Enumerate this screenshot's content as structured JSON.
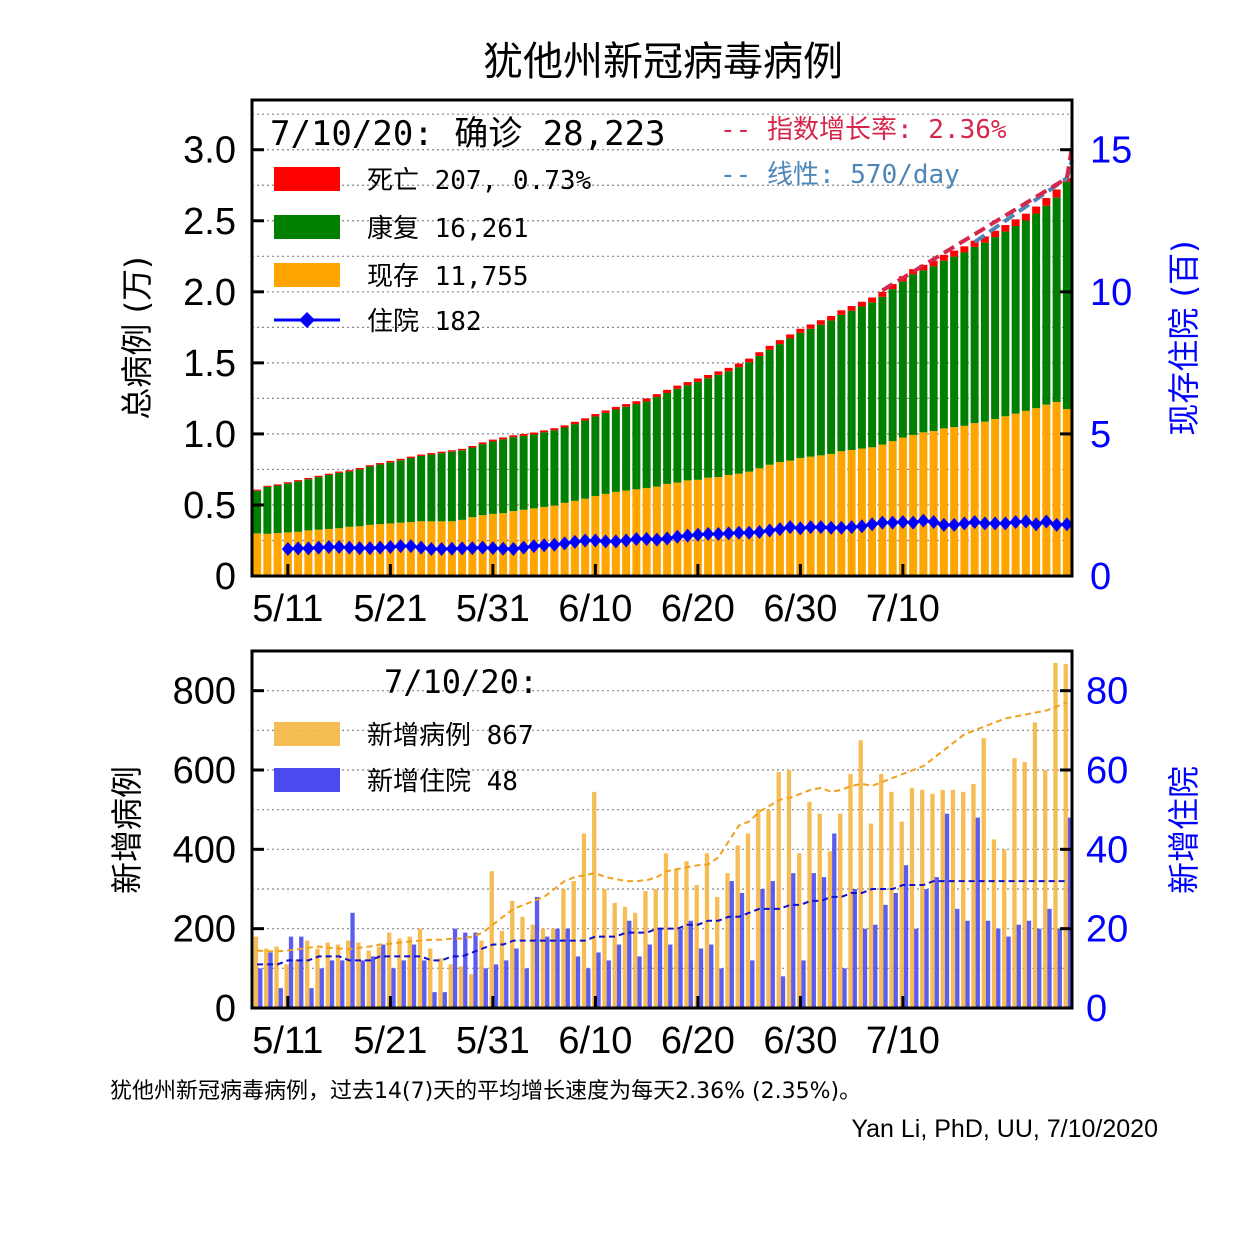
{
  "title": "犹他州新冠病毒病例",
  "footnote": "犹他州新冠病毒病例，过去14(7)天的平均增长速度为每天2.36% (2.35%)。",
  "credit": "Yan Li, PhD, UU, 7/10/2020",
  "colors": {
    "death": "#ff0000",
    "recovered": "#008000",
    "active": "#ffa500",
    "hosp_line": "#0000ff",
    "new_cases": "#f5b642",
    "new_hosp": "#4a4af0",
    "exp_fit": "#d6274a",
    "lin_fit": "#4f86b8",
    "right_axis": "#0000ff"
  },
  "top_legend": {
    "date_label": "7/10/20: 确诊 28,223",
    "death": "死亡 207, 0.73%",
    "recovered": "康复 16,261",
    "active": "现存 11,755",
    "hosp": "住院 182",
    "exp_fit": "-- 指数增长率: 2.36%",
    "lin_fit": "-- 线性: 570/day"
  },
  "bottom_legend": {
    "date_label": "7/10/20:",
    "new_cases": "新增病例 867",
    "new_hosp": "新增住院 48"
  },
  "chart_data": [
    {
      "type": "bar",
      "stacked": true,
      "ylabel": "总病例 (万)",
      "y2label": "现存住院 (百)",
      "ylim": [
        0,
        3.35
      ],
      "y2lim": [
        0,
        16.75
      ],
      "yticks": [
        "0",
        "0.5",
        "1.0",
        "1.5",
        "2.0",
        "2.5",
        "3.0"
      ],
      "y2ticks": [
        "0",
        "5",
        "10",
        "15"
      ],
      "xticks": [
        "5/11",
        "5/21",
        "5/31",
        "6/10",
        "6/20",
        "6/30",
        "7/10"
      ],
      "start_date": "5/8",
      "grid": "horizontal dotted",
      "legend_position": "top-left",
      "total": [
        0.608,
        0.635,
        0.645,
        0.66,
        0.675,
        0.69,
        0.705,
        0.72,
        0.735,
        0.745,
        0.76,
        0.78,
        0.795,
        0.81,
        0.825,
        0.84,
        0.855,
        0.865,
        0.875,
        0.885,
        0.895,
        0.915,
        0.94,
        0.96,
        0.975,
        0.99,
        1.0,
        1.01,
        1.025,
        1.04,
        1.06,
        1.085,
        1.11,
        1.14,
        1.165,
        1.19,
        1.21,
        1.23,
        1.25,
        1.28,
        1.31,
        1.34,
        1.365,
        1.39,
        1.415,
        1.44,
        1.465,
        1.495,
        1.53,
        1.575,
        1.62,
        1.66,
        1.7,
        1.74,
        1.77,
        1.8,
        1.83,
        1.87,
        1.9,
        1.93,
        1.96,
        2.0,
        2.055,
        2.11,
        2.16,
        2.19,
        2.22,
        2.26,
        2.29,
        2.32,
        2.36,
        2.39,
        2.43,
        2.47,
        2.51,
        2.55,
        2.6,
        2.66,
        2.72,
        2.8
      ],
      "recovered": [
        0.3,
        0.33,
        0.335,
        0.345,
        0.355,
        0.36,
        0.37,
        0.38,
        0.39,
        0.39,
        0.4,
        0.41,
        0.42,
        0.43,
        0.44,
        0.45,
        0.46,
        0.47,
        0.48,
        0.49,
        0.49,
        0.49,
        0.5,
        0.51,
        0.52,
        0.52,
        0.52,
        0.52,
        0.525,
        0.53,
        0.53,
        0.54,
        0.55,
        0.56,
        0.57,
        0.58,
        0.59,
        0.6,
        0.61,
        0.63,
        0.64,
        0.66,
        0.67,
        0.69,
        0.7,
        0.72,
        0.73,
        0.75,
        0.77,
        0.79,
        0.81,
        0.83,
        0.86,
        0.88,
        0.9,
        0.92,
        0.94,
        0.96,
        0.98,
        1.0,
        1.02,
        1.04,
        1.07,
        1.1,
        1.13,
        1.14,
        1.16,
        1.18,
        1.2,
        1.22,
        1.24,
        1.26,
        1.28,
        1.3,
        1.32,
        1.34,
        1.37,
        1.4,
        1.44,
        1.6
      ],
      "active": [
        0.3,
        0.297,
        0.302,
        0.307,
        0.311,
        0.321,
        0.326,
        0.331,
        0.336,
        0.346,
        0.35,
        0.36,
        0.365,
        0.37,
        0.375,
        0.38,
        0.385,
        0.385,
        0.385,
        0.385,
        0.395,
        0.414,
        0.428,
        0.437,
        0.442,
        0.457,
        0.466,
        0.476,
        0.486,
        0.496,
        0.515,
        0.529,
        0.544,
        0.563,
        0.578,
        0.592,
        0.601,
        0.61,
        0.619,
        0.629,
        0.648,
        0.658,
        0.673,
        0.677,
        0.692,
        0.696,
        0.711,
        0.72,
        0.734,
        0.758,
        0.783,
        0.802,
        0.812,
        0.831,
        0.84,
        0.849,
        0.859,
        0.878,
        0.887,
        0.897,
        0.906,
        0.925,
        0.949,
        0.974,
        0.993,
        1.011,
        1.02,
        1.039,
        1.048,
        1.057,
        1.076,
        1.086,
        1.105,
        1.124,
        1.143,
        1.162,
        1.181,
        1.206,
        1.225,
        1.175
      ],
      "hospitalized": [
        null,
        null,
        null,
        0.95,
        0.97,
        0.97,
        1.0,
        1.02,
        1.02,
        1.0,
        0.98,
        0.98,
        1.0,
        1.02,
        1.05,
        1.05,
        1.0,
        0.95,
        0.95,
        0.96,
        0.97,
        0.98,
        1.0,
        0.98,
        0.96,
        0.95,
        1.0,
        1.05,
        1.08,
        1.1,
        1.15,
        1.2,
        1.25,
        1.25,
        1.22,
        1.22,
        1.25,
        1.3,
        1.3,
        1.28,
        1.32,
        1.38,
        1.42,
        1.45,
        1.48,
        1.48,
        1.5,
        1.52,
        1.52,
        1.55,
        1.6,
        1.65,
        1.72,
        1.68,
        1.72,
        1.72,
        1.7,
        1.7,
        1.72,
        1.75,
        1.82,
        1.88,
        1.88,
        1.9,
        1.88,
        1.95,
        1.9,
        1.8,
        1.8,
        1.85,
        1.9,
        1.85,
        1.85,
        1.85,
        1.9,
        1.92,
        1.82,
        1.92,
        1.8,
        1.82
      ],
      "exp_fit": {
        "from_index": 61,
        "values": [
          2.01,
          2.8,
          3.02
        ]
      },
      "linear_fit": {
        "from_index": 70,
        "values": [
          2.35,
          2.8,
          2.93
        ]
      }
    },
    {
      "type": "bar",
      "ylabel": "新增病例",
      "y2label": "新增住院",
      "ylim": [
        0,
        900
      ],
      "y2lim": [
        0,
        90
      ],
      "yticks": [
        "0",
        "200",
        "400",
        "600",
        "800"
      ],
      "y2ticks": [
        "0",
        "20",
        "40",
        "60",
        "80"
      ],
      "xticks": [
        "5/11",
        "5/21",
        "5/31",
        "6/10",
        "6/20",
        "6/30",
        "7/10"
      ],
      "start_date": "5/8",
      "grid": "horizontal dotted",
      "legend_position": "top-left",
      "new_cases": [
        180,
        150,
        155,
        110,
        120,
        170,
        150,
        165,
        160,
        170,
        165,
        145,
        155,
        190,
        175,
        180,
        200,
        150,
        125,
        110,
        105,
        85,
        170,
        345,
        195,
        270,
        230,
        210,
        200,
        200,
        300,
        320,
        440,
        545,
        300,
        265,
        255,
        240,
        295,
        300,
        390,
        350,
        370,
        310,
        390,
        280,
        340,
        410,
        440,
        500,
        500,
        595,
        600,
        390,
        520,
        490,
        395,
        490,
        590,
        675,
        465,
        590,
        545,
        470,
        555,
        550,
        540,
        550,
        550,
        545,
        565,
        680,
        425,
        400,
        630,
        620,
        720,
        600,
        870,
        867
      ],
      "new_hosp": [
        10,
        14,
        5,
        18,
        18,
        5,
        10,
        12,
        12,
        24,
        12,
        13,
        16,
        10,
        12,
        16,
        12,
        4,
        4,
        20,
        19,
        19,
        10,
        11,
        12,
        15,
        10,
        28,
        18,
        20,
        20,
        13,
        10,
        14,
        12,
        16,
        22,
        13,
        16,
        20,
        16,
        20,
        22,
        15,
        16,
        10,
        32,
        29,
        12,
        30,
        32,
        8,
        34,
        12,
        34,
        33,
        44,
        10,
        30,
        20,
        21,
        26,
        29,
        36,
        20,
        30,
        33,
        49,
        25,
        22,
        48,
        22,
        20,
        18,
        21,
        22,
        20,
        25,
        20,
        48
      ],
      "new_cases_avg_from_index": 0,
      "new_cases_avg": [
        145,
        143,
        143,
        145,
        148,
        152,
        155,
        152,
        150,
        148,
        152,
        155,
        160,
        162,
        165,
        168,
        170,
        172,
        172,
        175,
        175,
        180,
        190,
        210,
        230,
        250,
        260,
        270,
        280,
        300,
        320,
        330,
        335,
        340,
        330,
        325,
        320,
        320,
        322,
        330,
        345,
        350,
        355,
        360,
        362,
        380,
        420,
        460,
        470,
        495,
        510,
        525,
        530,
        540,
        550,
        555,
        545,
        550,
        560,
        565,
        560,
        570,
        580,
        590,
        600,
        610,
        630,
        650,
        670,
        690,
        700,
        710,
        720,
        730,
        735,
        740,
        745,
        750,
        760,
        770
      ],
      "new_hosp_avg": [
        11,
        11,
        11,
        12,
        12,
        12,
        13,
        13,
        13,
        12,
        12,
        12,
        13,
        13,
        13,
        13,
        13,
        12,
        12,
        13,
        13,
        14,
        15,
        16,
        16,
        17,
        17,
        17,
        17,
        17,
        17,
        17,
        17,
        18,
        18,
        18,
        19,
        19,
        19,
        20,
        20,
        20,
        21,
        21,
        22,
        22,
        23,
        23,
        24,
        25,
        25,
        25,
        26,
        26,
        27,
        27,
        28,
        28,
        29,
        29,
        30,
        30,
        30,
        31,
        31,
        31,
        32,
        32,
        32,
        32,
        32,
        32,
        32,
        32,
        32,
        32,
        32,
        32,
        32,
        32
      ]
    }
  ]
}
